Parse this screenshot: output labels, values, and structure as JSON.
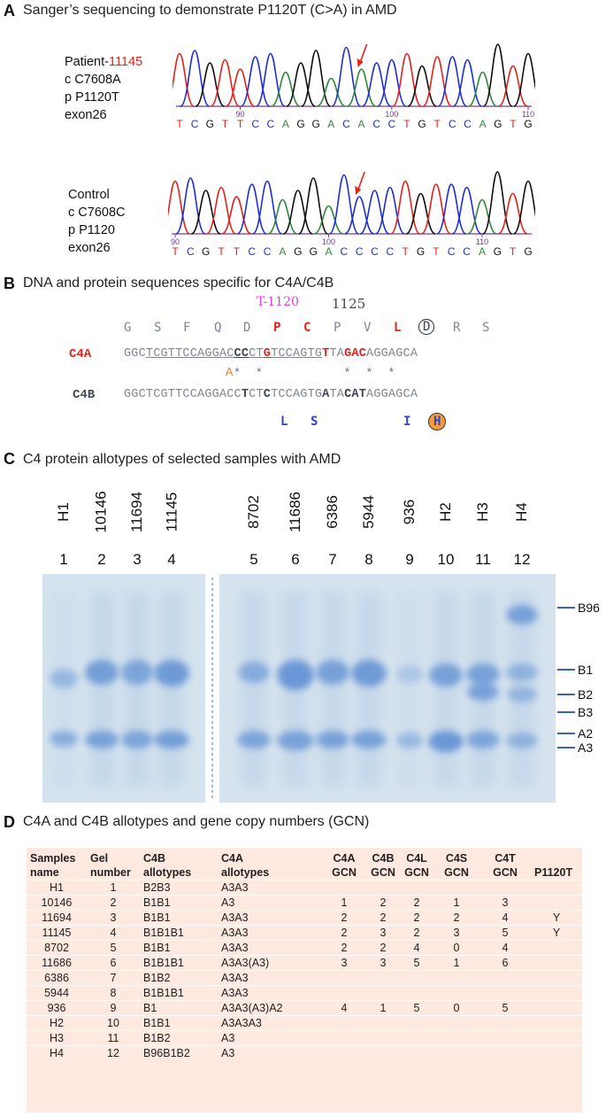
{
  "panelA": {
    "label": "A",
    "title": "Sanger’s sequencing to demonstrate P1120T (C>A) in AMD",
    "patient": {
      "name_prefix": "Patient-",
      "name_id": "11145",
      "c_change": "c C7608A",
      "p_change": "p P1120T",
      "exon": "exon26",
      "bases": [
        "T",
        "C",
        "G",
        "T",
        "T",
        "C",
        "C",
        "A",
        "G",
        "G",
        "A",
        "C",
        "A",
        "C",
        "C",
        "T",
        "G",
        "T",
        "C",
        "C",
        "A",
        "G",
        "T",
        "G"
      ],
      "ticks": [
        "90",
        "100",
        "110"
      ]
    },
    "control": {
      "name": "Control",
      "c_change": "c C7608C",
      "p_change": "p P1120",
      "exon": "exon26",
      "bases": [
        "T",
        "C",
        "G",
        "T",
        "T",
        "C",
        "C",
        "A",
        "G",
        "G",
        "A",
        "C",
        "C",
        "C",
        "C",
        "T",
        "G",
        "T",
        "C",
        "C",
        "A",
        "G",
        "T",
        "G"
      ],
      "ticks": [
        "90",
        "100",
        "110"
      ]
    }
  },
  "panelB": {
    "label": "B",
    "title": "DNA and protein sequences specific for C4A/C4B",
    "t1120": "T-1120",
    "pos1125": "1125",
    "aa_top": [
      "G",
      "S",
      "F",
      "Q",
      "D",
      "P",
      "C",
      "P",
      "V",
      "L",
      "D",
      "R",
      "S"
    ],
    "c4a_label": "C4A",
    "c4a_seq_pre": "GGC",
    "c4a_seq_ul1": "TCGTTCCAGGAC",
    "c4a_seq_b1": "CC",
    "c4a_seq_ul2": "CT",
    "c4a_seq_b2": "G",
    "c4a_seq_ul3": "TCCAGTG",
    "c4a_seq_b3": "T",
    "c4a_seq_mid": "TA",
    "c4a_seq_b4": "G",
    "c4a_seq_b5": "A",
    "c4a_seq_b6": "C",
    "c4a_seq_post": "AGGAGCA",
    "mark_a": "A",
    "stars": "*  *           *  *  *",
    "c4b_label": "C4B",
    "c4b_seq_1": "GGCTCGTTCCAGGACC",
    "c4b_seq_b1": "T",
    "c4b_seq_2": "CT",
    "c4b_seq_b2": "C",
    "c4b_seq_3": "TCCAGTG",
    "c4b_seq_b3": "A",
    "c4b_seq_4": "TA",
    "c4b_seq_b4": "C",
    "c4b_seq_b5": "A",
    "c4b_seq_b6": "T",
    "c4b_seq_5": "AGGAGCA",
    "aa_bottom": [
      "L",
      "S",
      "I",
      "H"
    ]
  },
  "panelC": {
    "label": "C",
    "title": "C4 protein allotypes of selected samples with AMD",
    "lanes": [
      {
        "sample": "H1",
        "number": "1"
      },
      {
        "sample": "10146",
        "number": "2"
      },
      {
        "sample": "11694",
        "number": "3"
      },
      {
        "sample": "11145",
        "number": "4"
      },
      {
        "sample": "8702",
        "number": "5"
      },
      {
        "sample": "11686",
        "number": "6"
      },
      {
        "sample": "6386",
        "number": "7"
      },
      {
        "sample": "5944",
        "number": "8"
      },
      {
        "sample": "936",
        "number": "9"
      },
      {
        "sample": "H2",
        "number": "10"
      },
      {
        "sample": "H3",
        "number": "11"
      },
      {
        "sample": "H4",
        "number": "12"
      }
    ],
    "markers": [
      "B96",
      "B1",
      "B2",
      "B3",
      "A2",
      "A3"
    ]
  },
  "panelD": {
    "label": "D",
    "title": "C4A and C4B allotypes and gene copy numbers (GCN)",
    "headers": [
      [
        "Samples",
        "name"
      ],
      [
        "Gel",
        "number"
      ],
      [
        "C4B",
        "allotypes"
      ],
      [
        "C4A",
        "allotypes"
      ],
      [
        "C4A",
        "GCN"
      ],
      [
        "C4B",
        "GCN"
      ],
      [
        "C4L",
        "GCN"
      ],
      [
        "C4S",
        "GCN"
      ],
      [
        "C4T",
        "GCN"
      ],
      [
        "",
        "P1120T"
      ]
    ],
    "rows": [
      [
        "H1",
        "1",
        "B2B3",
        "A3A3",
        "",
        "",
        "",
        "",
        "",
        ""
      ],
      [
        "10146",
        "2",
        "B1B1",
        "A3",
        "1",
        "2",
        "2",
        "1",
        "3",
        ""
      ],
      [
        "11694",
        "3",
        "B1B1",
        "A3A3",
        "2",
        "2",
        "2",
        "2",
        "4",
        "Y"
      ],
      [
        "11145",
        "4",
        "B1B1B1",
        "A3A3",
        "2",
        "3",
        "2",
        "3",
        "5",
        "Y"
      ],
      [
        "8702",
        "5",
        "B1B1",
        "A3A3",
        "2",
        "2",
        "4",
        "0",
        "4",
        ""
      ],
      [
        "11686",
        "6",
        "B1B1B1",
        "A3A3(A3)",
        "3",
        "3",
        "5",
        "1",
        "6",
        ""
      ],
      [
        "6386",
        "7",
        "B1B2",
        "A3A3",
        "",
        "",
        "",
        "",
        "",
        ""
      ],
      [
        "5944",
        "8",
        "B1B1B1",
        "A3A3",
        "",
        "",
        "",
        "",
        "",
        ""
      ],
      [
        "936",
        "9",
        "B1",
        "A3A3(A3)A2",
        "4",
        "1",
        "5",
        "0",
        "5",
        ""
      ],
      [
        "H2",
        "10",
        "B1B1",
        "A3A3A3",
        "",
        "",
        "",
        "",
        "",
        ""
      ],
      [
        "H3",
        "11",
        "B1B2",
        "A3",
        "",
        "",
        "",
        "",
        "",
        ""
      ],
      [
        "H4",
        "12",
        "B96B1B2",
        "A3",
        "",
        "",
        "",
        "",
        "",
        ""
      ]
    ]
  }
}
